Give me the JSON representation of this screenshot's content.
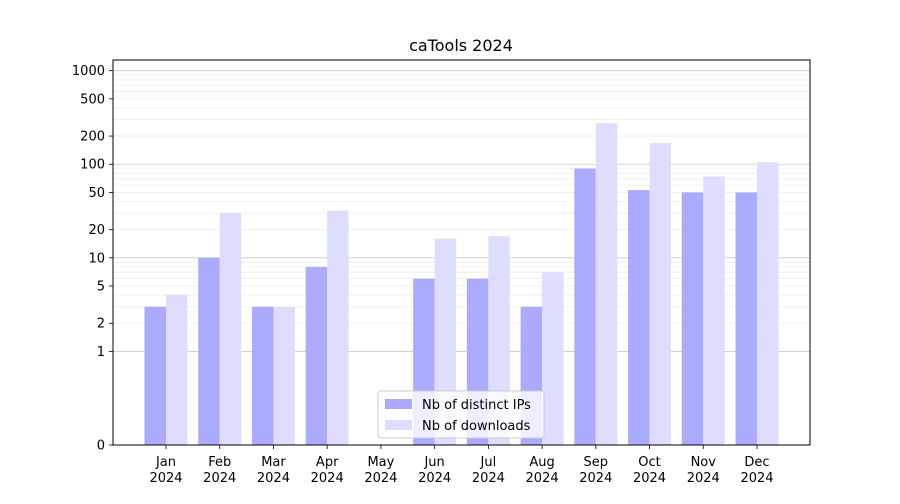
{
  "chart_data": {
    "type": "bar",
    "title": "caTools 2024",
    "xlabel": "",
    "ylabel": "",
    "y_scale": "symlog",
    "ylim": [
      0,
      1300
    ],
    "y_ticks": [
      0,
      1,
      2,
      5,
      10,
      20,
      50,
      100,
      200,
      500,
      1000
    ],
    "categories": [
      {
        "month": "Jan",
        "year": "2024"
      },
      {
        "month": "Feb",
        "year": "2024"
      },
      {
        "month": "Mar",
        "year": "2024"
      },
      {
        "month": "Apr",
        "year": "2024"
      },
      {
        "month": "May",
        "year": "2024"
      },
      {
        "month": "Jun",
        "year": "2024"
      },
      {
        "month": "Jul",
        "year": "2024"
      },
      {
        "month": "Aug",
        "year": "2024"
      },
      {
        "month": "Sep",
        "year": "2024"
      },
      {
        "month": "Oct",
        "year": "2024"
      },
      {
        "month": "Nov",
        "year": "2024"
      },
      {
        "month": "Dec",
        "year": "2024"
      }
    ],
    "series": [
      {
        "name": "Nb of distinct IPs",
        "color": "#aaaaff",
        "values": [
          3,
          10,
          3,
          8,
          0,
          6,
          6,
          3,
          90,
          53,
          50,
          50
        ]
      },
      {
        "name": "Nb of downloads",
        "color": "#ddddff",
        "values": [
          4,
          30,
          3,
          32,
          0,
          16,
          17,
          7,
          275,
          168,
          74,
          105
        ]
      }
    ],
    "legend_position": "lower center",
    "grid": true
  }
}
